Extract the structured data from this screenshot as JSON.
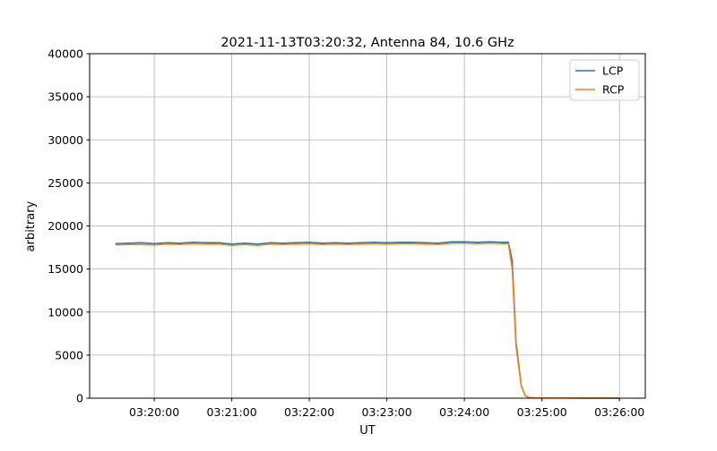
{
  "chart_data": {
    "type": "line",
    "title": "2021-11-13T03:20:32, Antenna 84, 10.6 GHz",
    "xlabel": "UT",
    "ylabel": "arbitrary",
    "ylim": [
      0,
      40000
    ],
    "xlim": [
      "03:19:10",
      "03:26:20"
    ],
    "yticks": [
      0,
      5000,
      10000,
      15000,
      20000,
      25000,
      30000,
      35000,
      40000
    ],
    "xticks": [
      "03:20:00",
      "03:21:00",
      "03:22:00",
      "03:23:00",
      "03:24:00",
      "03:25:00",
      "03:26:00"
    ],
    "grid": true,
    "legend_placement": "upper right",
    "x": [
      "03:19:30",
      "03:19:40",
      "03:19:50",
      "03:20:00",
      "03:20:10",
      "03:20:20",
      "03:20:30",
      "03:20:40",
      "03:20:50",
      "03:21:00",
      "03:21:10",
      "03:21:20",
      "03:21:30",
      "03:21:40",
      "03:21:50",
      "03:22:00",
      "03:22:10",
      "03:22:20",
      "03:22:30",
      "03:22:40",
      "03:22:50",
      "03:23:00",
      "03:23:10",
      "03:23:20",
      "03:23:30",
      "03:23:40",
      "03:23:50",
      "03:24:00",
      "03:24:10",
      "03:24:20",
      "03:24:30",
      "03:24:34",
      "03:24:37",
      "03:24:40",
      "03:24:44",
      "03:24:47",
      "03:24:50",
      "03:24:55",
      "03:25:00",
      "03:25:10",
      "03:25:20",
      "03:25:30",
      "03:25:40",
      "03:25:50",
      "03:26:00"
    ],
    "series": [
      {
        "name": "LCP",
        "color": "#1f77b4",
        "values": [
          17950,
          18000,
          18050,
          17950,
          18050,
          18000,
          18100,
          18050,
          18050,
          17900,
          18000,
          17900,
          18050,
          18000,
          18050,
          18100,
          18000,
          18050,
          18000,
          18050,
          18100,
          18050,
          18100,
          18100,
          18050,
          18000,
          18150,
          18150,
          18100,
          18150,
          18100,
          18100,
          16000,
          6500,
          1500,
          300,
          80,
          30,
          20,
          20,
          20,
          10,
          10,
          10,
          0
        ]
      },
      {
        "name": "RCP",
        "color": "#ff7f0e",
        "values": [
          17800,
          17850,
          17850,
          17800,
          17900,
          17850,
          17950,
          17900,
          17900,
          17750,
          17850,
          17750,
          17900,
          17850,
          17900,
          17950,
          17850,
          17900,
          17850,
          17900,
          17950,
          17900,
          17950,
          17950,
          17900,
          17850,
          18000,
          18000,
          17950,
          18000,
          17950,
          17950,
          15000,
          6000,
          1400,
          280,
          70,
          30,
          20,
          20,
          20,
          10,
          10,
          10,
          0
        ]
      }
    ]
  }
}
